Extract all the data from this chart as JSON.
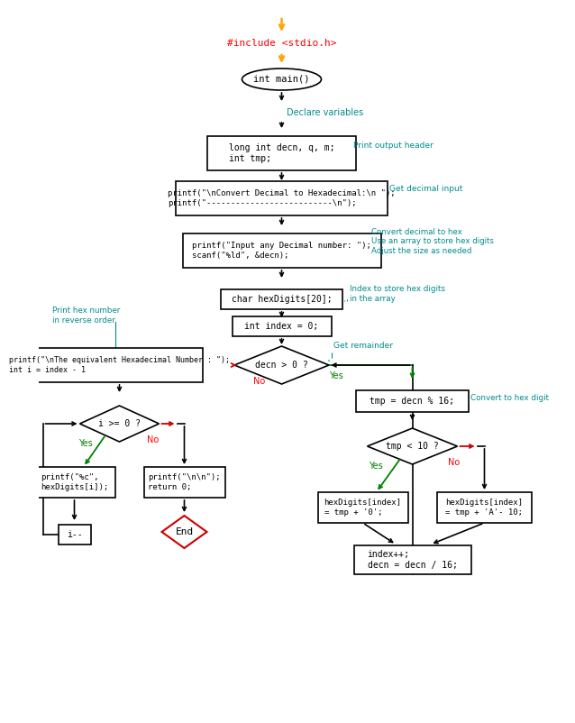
{
  "bg_color": "#ffffff",
  "orange_color": "#FFA500",
  "green_color": "#008000",
  "red_color": "#CC0000",
  "teal_color": "#008B8B",
  "black_color": "#000000",
  "include_text": "#include <stdio.h>",
  "main_text": "int main()",
  "declare_label": "Declare variables",
  "box1_text": "long int decn, q, m;\nint tmp;",
  "box1_label": "Print output header",
  "box2_text": "printf(\"\\nConvert Decimal to Hexadecimal:\\n \");\nprintf(\"--------------------------\\n\");",
  "box2_label": "Get decimal input",
  "box3_text": "printf(\"Input any Decimal number: \");\nscanf(\"%ld\", &decn);",
  "box3_label": "Convert decimal to hex\nUse an array to store hex digits\nAdjust the size as needed",
  "box4_text": "char hexDigits[20];",
  "box4_label": "Index to store hex digits\nin the array",
  "box5_text": "int index = 0;",
  "d1_text": "decn > 0 ?",
  "d1_yes": "Yes",
  "d1_no": "No",
  "d1_annot": "Get remainder",
  "left_label": "Print hex number\nin reverse order",
  "left_box_text": "printf(\"\\nThe equivalent Hexadecimal Number : \");\nint i = index - 1",
  "d2_text": "i >= 0 ?",
  "d2_yes": "Yes",
  "d2_no": "No",
  "yes2_box": "printf(\"%c\",\nhexDigits[i]);",
  "no2_box": "printf(\"\\n\\n\");\nreturn 0;",
  "decr_text": "i--",
  "end_text": "End",
  "r_box1_text": "tmp = decn % 16;",
  "r_box1_label": "Convert to hex digit",
  "d3_text": "tmp < 10 ?",
  "d3_yes": "Yes",
  "d3_no": "No",
  "r_yes_box": "hexDigits[index]\n= tmp + '0';",
  "r_no_box": "hexDigits[index]\n= tmp + 'A'- 10;",
  "bot_box": "index++;\ndecn = decn / 16;"
}
